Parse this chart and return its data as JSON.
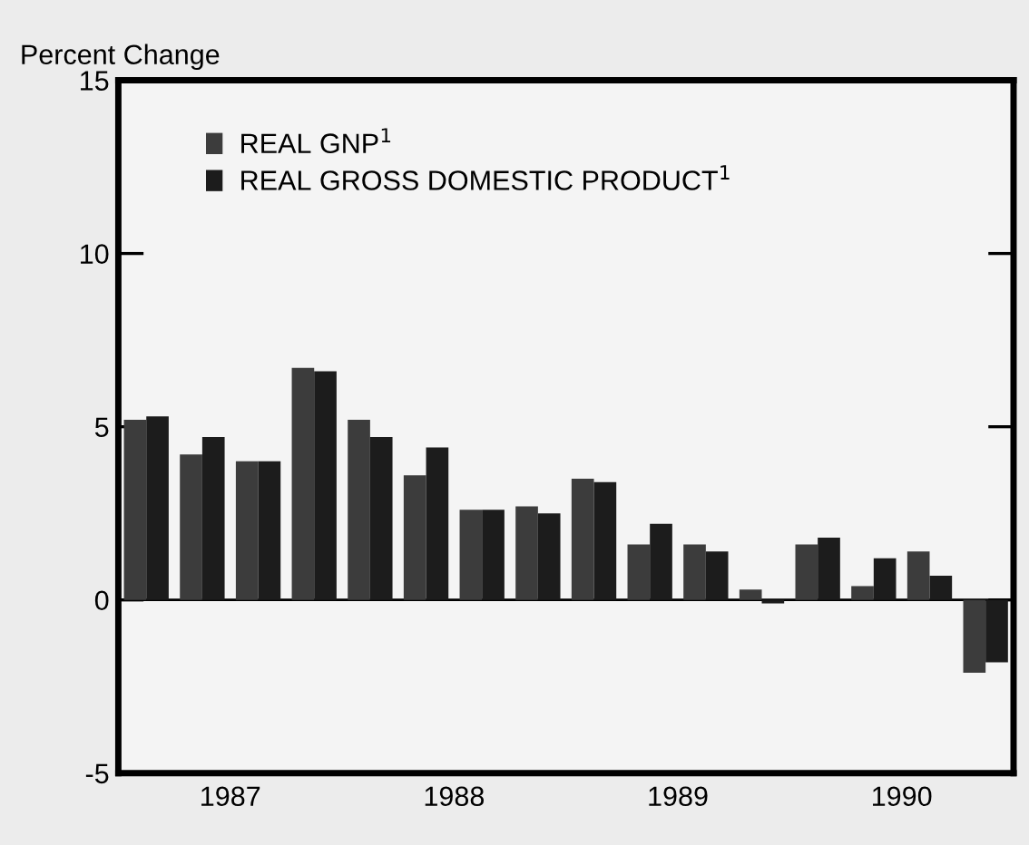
{
  "chart_data": {
    "type": "bar",
    "ylabel": "Percent Change",
    "x": [
      1987.125,
      1987.375,
      1987.625,
      1987.875,
      1988.125,
      1988.375,
      1988.625,
      1988.875,
      1989.125,
      1989.375,
      1989.625,
      1989.875,
      1990.125,
      1990.375,
      1990.625,
      1990.875
    ],
    "series": [
      {
        "name": "REAL GNP$^{1}$",
        "color": "#3c3c3c",
        "values": [
          5.2,
          4.2,
          4.0,
          6.7,
          5.2,
          3.6,
          2.6,
          2.7,
          3.5,
          1.6,
          1.6,
          0.3,
          1.6,
          0.4,
          1.4,
          -2.1
        ]
      },
      {
        "name": "REAL GROSS DOMESTIC PRODUCT$^{1}$",
        "color": "#1c1c1c",
        "values": [
          5.3,
          4.7,
          4.0,
          6.6,
          4.7,
          4.4,
          2.6,
          2.5,
          3.4,
          2.2,
          1.4,
          -0.1,
          1.8,
          1.2,
          0.7,
          -1.8
        ]
      }
    ],
    "xlim": [
      1987,
      1991
    ],
    "xticks": [
      {
        "value": 1987.5,
        "label": "1987"
      },
      {
        "value": 1988.5,
        "label": "1988"
      },
      {
        "value": 1989.5,
        "label": "1989"
      },
      {
        "value": 1990.5,
        "label": "1990"
      }
    ],
    "ylim": [
      -5,
      15
    ],
    "yticks": [
      -5,
      0,
      5,
      10,
      15
    ],
    "ref_lines": [
      {
        "axis": "y",
        "value": 0,
        "color": "#000000"
      }
    ],
    "grid": false,
    "legend": "top left"
  }
}
